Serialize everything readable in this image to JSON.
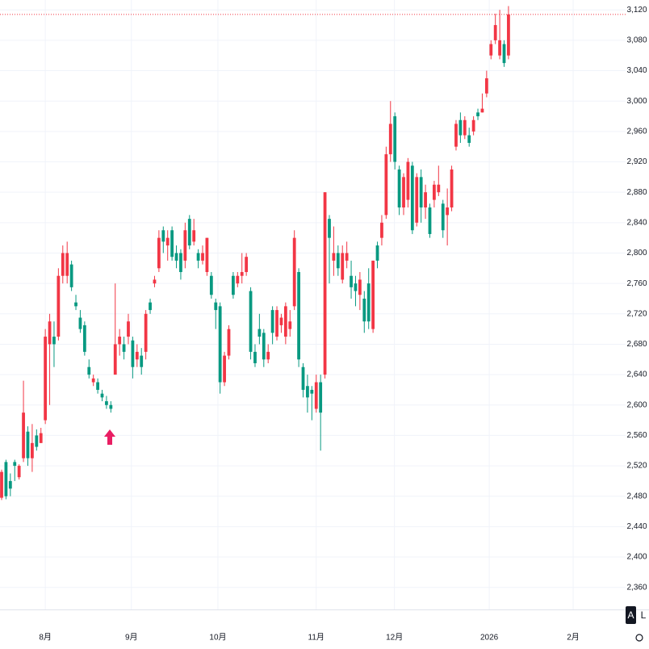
{
  "chart_data": {
    "type": "candlestick",
    "up_color": "#f23645",
    "down_color": "#089981",
    "grid": true,
    "ohlc": [
      [
        2478,
        2515,
        2475,
        2512
      ],
      [
        2525,
        2528,
        2476,
        2480
      ],
      [
        2500,
        2510,
        2480,
        2490
      ],
      [
        2525,
        2528,
        2500,
        2520
      ],
      [
        2505,
        2522,
        2502,
        2520
      ],
      [
        2530,
        2632,
        2525,
        2590
      ],
      [
        2565,
        2572,
        2520,
        2530
      ],
      [
        2530,
        2575,
        2512,
        2550
      ],
      [
        2560,
        2568,
        2540,
        2545
      ],
      [
        2550,
        2570,
        2550,
        2563
      ],
      [
        2580,
        2700,
        2575,
        2690
      ],
      [
        2680,
        2720,
        2600,
        2710
      ],
      [
        2690,
        2710,
        2650,
        2680
      ],
      [
        2690,
        2780,
        2685,
        2770
      ],
      [
        2770,
        2810,
        2760,
        2800
      ],
      [
        2770,
        2815,
        2760,
        2800
      ],
      [
        2785,
        2790,
        2750,
        2755
      ],
      [
        2735,
        2745,
        2725,
        2730
      ],
      [
        2715,
        2725,
        2695,
        2700
      ],
      [
        2705,
        2710,
        2665,
        2670
      ],
      [
        2650,
        2660,
        2635,
        2640
      ],
      [
        2630,
        2640,
        2625,
        2635
      ],
      [
        2630,
        2635,
        2615,
        2620
      ],
      [
        2615,
        2620,
        2605,
        2610
      ],
      [
        2605,
        2612,
        2595,
        2600
      ],
      [
        2600,
        2605,
        2590,
        2595
      ],
      [
        2640,
        2760,
        2640,
        2680
      ],
      [
        2680,
        2700,
        2665,
        2690
      ],
      [
        2680,
        2690,
        2660,
        2670
      ],
      [
        2690,
        2720,
        2680,
        2710
      ],
      [
        2685,
        2690,
        2635,
        2650
      ],
      [
        2660,
        2680,
        2650,
        2670
      ],
      [
        2665,
        2675,
        2640,
        2650
      ],
      [
        2670,
        2725,
        2660,
        2720
      ],
      [
        2735,
        2740,
        2720,
        2725
      ],
      [
        2760,
        2770,
        2755,
        2765
      ],
      [
        2780,
        2830,
        2775,
        2820
      ],
      [
        2830,
        2835,
        2800,
        2815
      ],
      [
        2810,
        2830,
        2790,
        2820
      ],
      [
        2830,
        2835,
        2790,
        2795
      ],
      [
        2800,
        2810,
        2780,
        2790
      ],
      [
        2800,
        2805,
        2765,
        2775
      ],
      [
        2790,
        2840,
        2780,
        2830
      ],
      [
        2845,
        2850,
        2805,
        2810
      ],
      [
        2815,
        2845,
        2810,
        2830
      ],
      [
        2800,
        2805,
        2780,
        2790
      ],
      [
        2790,
        2810,
        2785,
        2800
      ],
      [
        2775,
        2820,
        2770,
        2820
      ],
      [
        2770,
        2775,
        2740,
        2745
      ],
      [
        2735,
        2740,
        2700,
        2725
      ],
      [
        2730,
        2735,
        2615,
        2630
      ],
      [
        2630,
        2670,
        2625,
        2665
      ],
      [
        2665,
        2705,
        2660,
        2700
      ],
      [
        2770,
        2775,
        2740,
        2745
      ],
      [
        2760,
        2775,
        2755,
        2770
      ],
      [
        2770,
        2800,
        2760,
        2775
      ],
      [
        2775,
        2800,
        2770,
        2795
      ],
      [
        2750,
        2755,
        2660,
        2670
      ],
      [
        2670,
        2680,
        2650,
        2655
      ],
      [
        2700,
        2720,
        2680,
        2690
      ],
      [
        2695,
        2700,
        2650,
        2660
      ],
      [
        2660,
        2680,
        2655,
        2670
      ],
      [
        2725,
        2730,
        2680,
        2695
      ],
      [
        2690,
        2730,
        2685,
        2725
      ],
      [
        2705,
        2720,
        2695,
        2715
      ],
      [
        2690,
        2735,
        2680,
        2730
      ],
      [
        2700,
        2725,
        2690,
        2710
      ],
      [
        2730,
        2830,
        2725,
        2820
      ],
      [
        2775,
        2780,
        2650,
        2660
      ],
      [
        2650,
        2655,
        2610,
        2620
      ],
      [
        2625,
        2640,
        2590,
        2610
      ],
      [
        2620,
        2625,
        2580,
        2615
      ],
      [
        2595,
        2640,
        2590,
        2630
      ],
      [
        2630,
        2640,
        2540,
        2590
      ],
      [
        2640,
        2880,
        2635,
        2880
      ],
      [
        2845,
        2850,
        2760,
        2820
      ],
      [
        2790,
        2835,
        2770,
        2800
      ],
      [
        2800,
        2810,
        2770,
        2780
      ],
      [
        2765,
        2810,
        2760,
        2800
      ],
      [
        2790,
        2815,
        2780,
        2800
      ],
      [
        2770,
        2790,
        2740,
        2755
      ],
      [
        2760,
        2770,
        2730,
        2750
      ],
      [
        2745,
        2775,
        2725,
        2765
      ],
      [
        2740,
        2750,
        2695,
        2710
      ],
      [
        2760,
        2780,
        2700,
        2710
      ],
      [
        2700,
        2790,
        2695,
        2790
      ],
      [
        2810,
        2815,
        2780,
        2790
      ],
      [
        2820,
        2850,
        2810,
        2840
      ],
      [
        2850,
        2940,
        2845,
        2930
      ],
      [
        2930,
        3000,
        2920,
        2970
      ],
      [
        2980,
        2985,
        2910,
        2920
      ],
      [
        2910,
        2915,
        2850,
        2860
      ],
      [
        2860,
        2905,
        2850,
        2900
      ],
      [
        2870,
        2925,
        2860,
        2920
      ],
      [
        2915,
        2920,
        2825,
        2830
      ],
      [
        2840,
        2905,
        2835,
        2900
      ],
      [
        2900,
        2910,
        2840,
        2860
      ],
      [
        2860,
        2890,
        2845,
        2880
      ],
      [
        2860,
        2865,
        2820,
        2825
      ],
      [
        2870,
        2895,
        2860,
        2890
      ],
      [
        2880,
        2915,
        2875,
        2890
      ],
      [
        2865,
        2870,
        2820,
        2830
      ],
      [
        2850,
        2885,
        2810,
        2860
      ],
      [
        2860,
        2915,
        2855,
        2910
      ],
      [
        2940,
        2975,
        2935,
        2970
      ],
      [
        2975,
        2985,
        2945,
        2955
      ],
      [
        2955,
        2980,
        2950,
        2975
      ],
      [
        2955,
        2965,
        2940,
        2945
      ],
      [
        2960,
        2980,
        2955,
        2975
      ],
      [
        2985,
        2990,
        2975,
        2980
      ],
      [
        2985,
        3010,
        2985,
        2990
      ],
      [
        3010,
        3040,
        3005,
        3030
      ],
      [
        3060,
        3080,
        3055,
        3075
      ],
      [
        3080,
        3115,
        3075,
        3100
      ],
      [
        3060,
        3120,
        3055,
        3080
      ],
      [
        3075,
        3080,
        3045,
        3050
      ],
      [
        3060,
        3125,
        3055,
        3114
      ]
    ],
    "xlim": [
      -0.37,
      142.8
    ],
    "xticks": [
      {
        "value": 10,
        "label": "8月"
      },
      {
        "value": 29.7,
        "label": "9月"
      },
      {
        "value": 49.5,
        "label": "10月"
      },
      {
        "value": 72,
        "label": "11月"
      },
      {
        "value": 89.9,
        "label": "12月"
      },
      {
        "value": 111.6,
        "label": "2026"
      },
      {
        "value": 130.8,
        "label": "2月"
      }
    ],
    "ylim": [
      2331,
      3133
    ],
    "yticks": [
      {
        "value": 2360,
        "label": "2,360"
      },
      {
        "value": 2400,
        "label": "2,400"
      },
      {
        "value": 2440,
        "label": "2,440"
      },
      {
        "value": 2480,
        "label": "2,480"
      },
      {
        "value": 2520,
        "label": "2,520"
      },
      {
        "value": 2560,
        "label": "2,560"
      },
      {
        "value": 2600,
        "label": "2,600"
      },
      {
        "value": 2640,
        "label": "2,640"
      },
      {
        "value": 2680,
        "label": "2,680"
      },
      {
        "value": 2720,
        "label": "2,720"
      },
      {
        "value": 2760,
        "label": "2,760"
      },
      {
        "value": 2800,
        "label": "2,800"
      },
      {
        "value": 2840,
        "label": "2,840"
      },
      {
        "value": 2880,
        "label": "2,880"
      },
      {
        "value": 2920,
        "label": "2,920"
      },
      {
        "value": 2960,
        "label": "2,960"
      },
      {
        "value": 3000,
        "label": "3,000"
      },
      {
        "value": 3040,
        "label": "3,040"
      },
      {
        "value": 3080,
        "label": "3,080"
      },
      {
        "value": 3120,
        "label": "3,120"
      }
    ],
    "buttons": [
      "A",
      "L"
    ]
  }
}
